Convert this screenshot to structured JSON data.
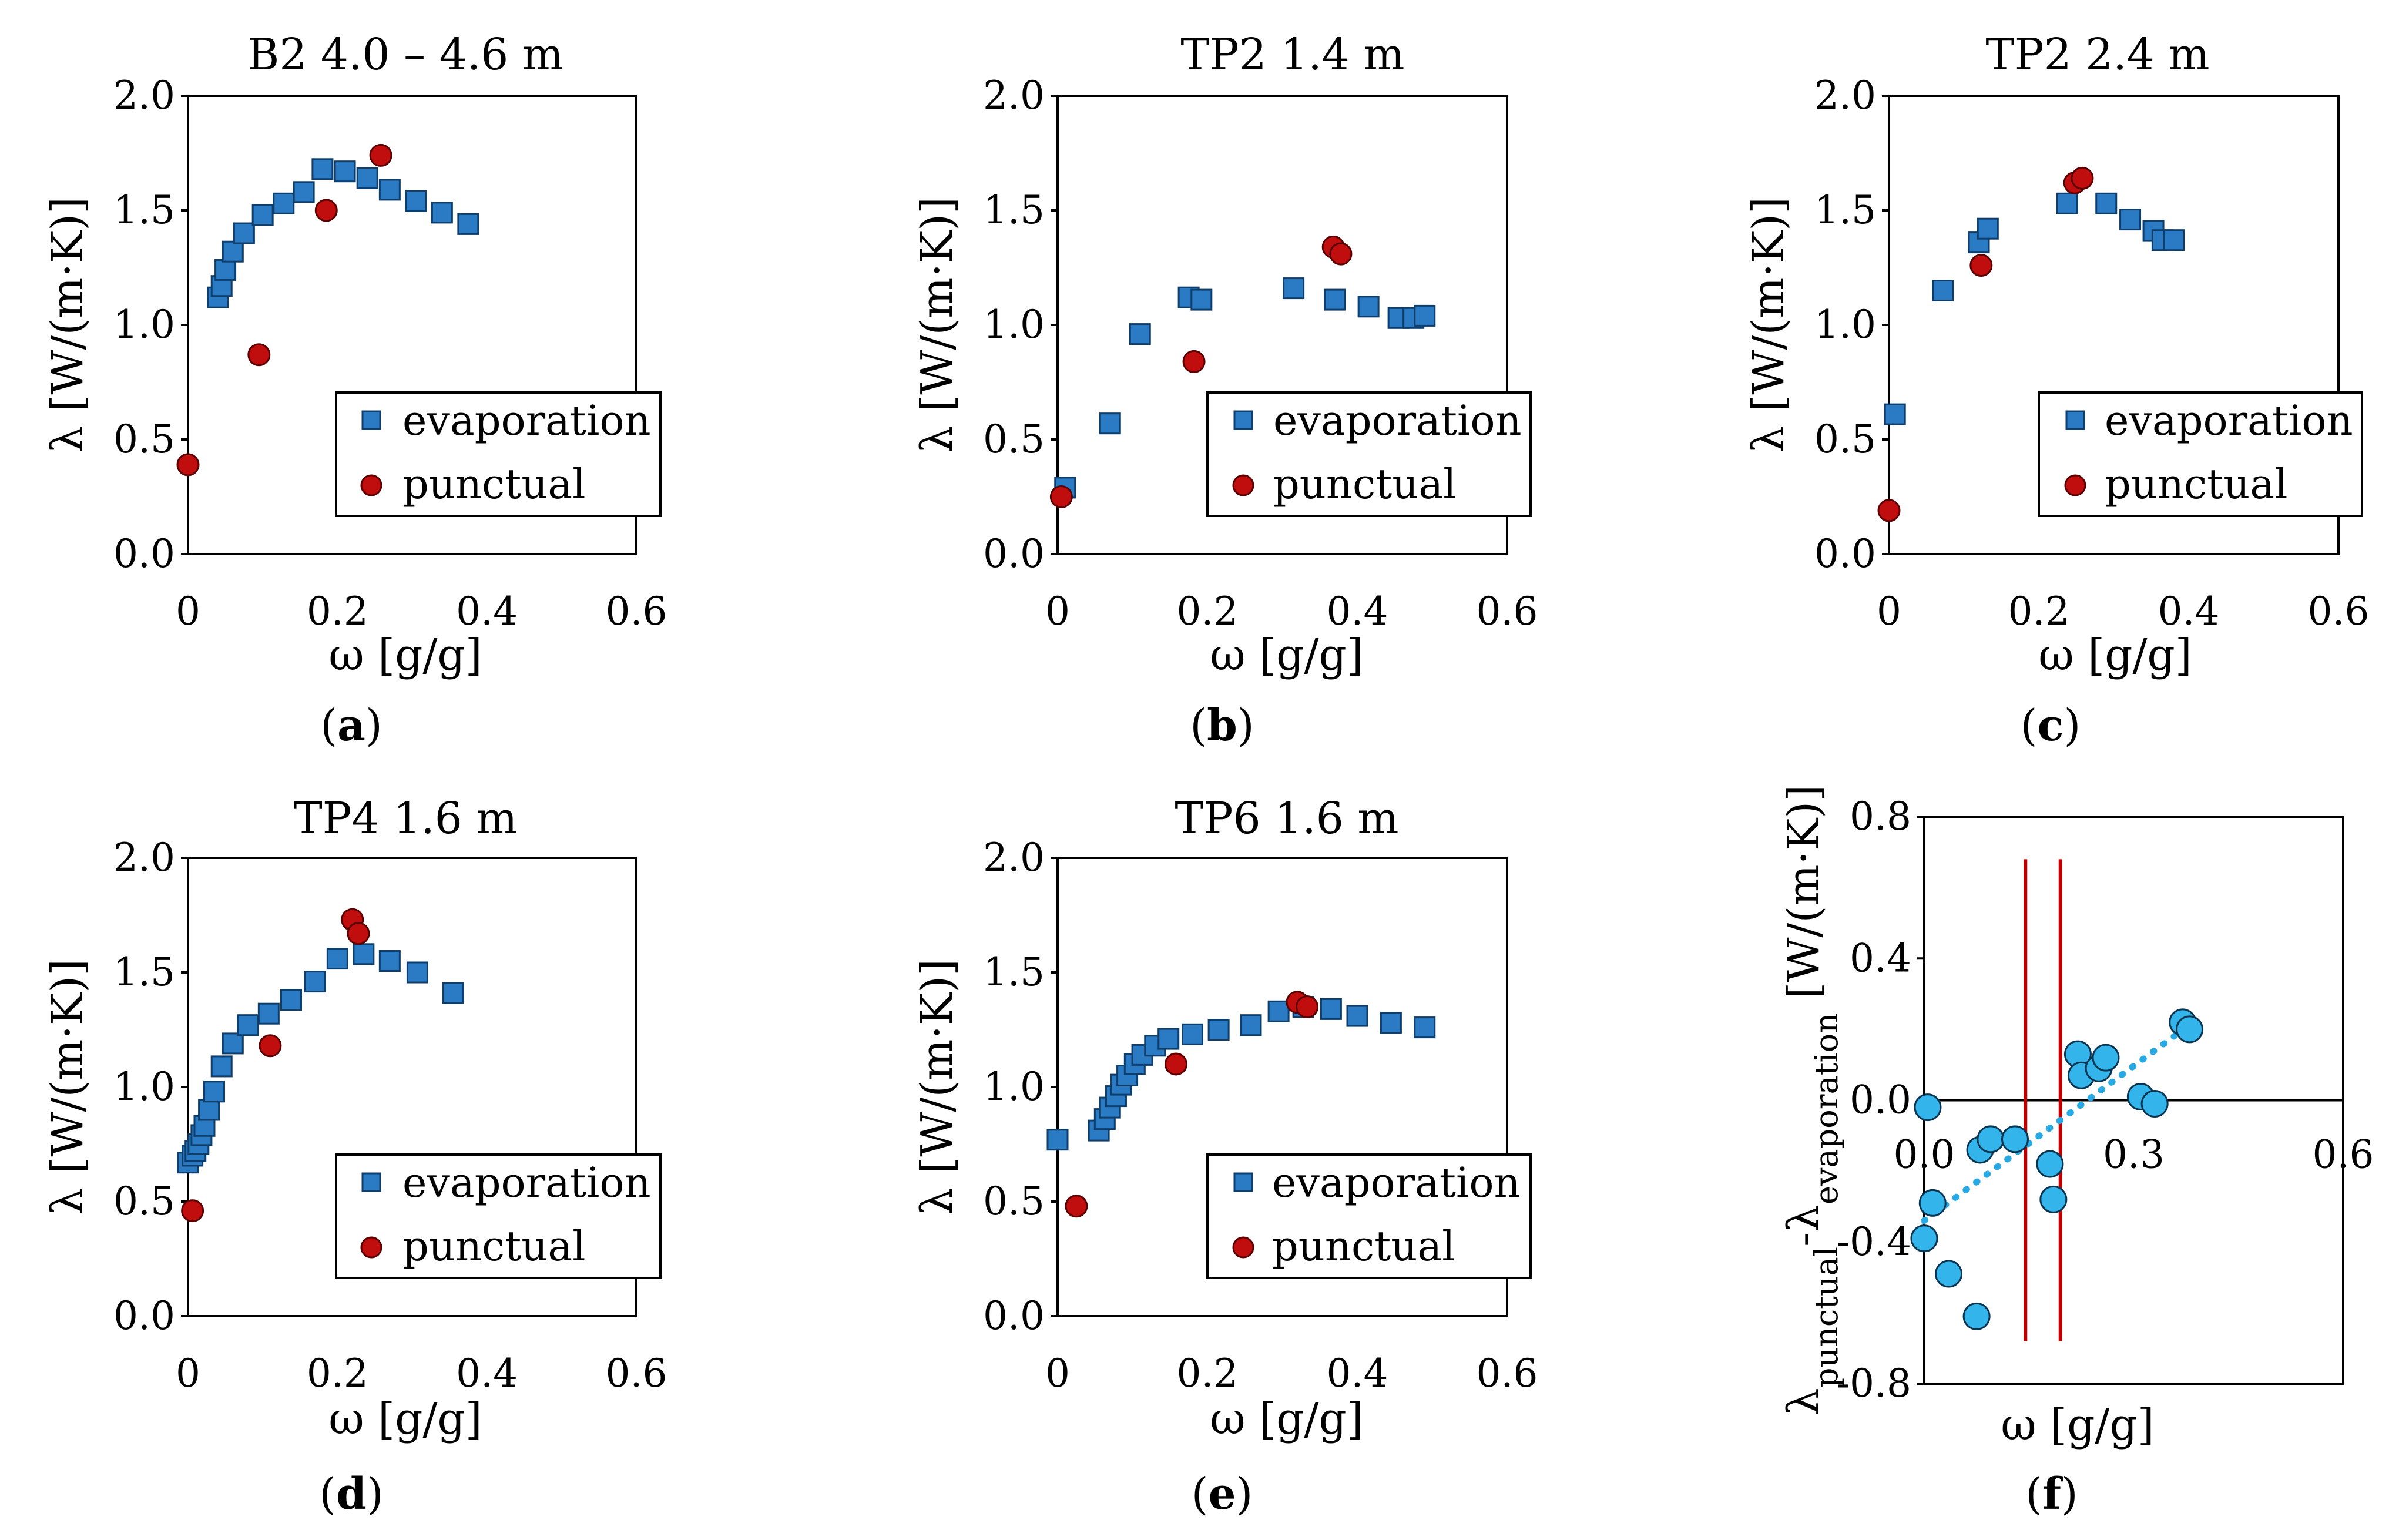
{
  "figure": {
    "legend_labels": {
      "evaporation": "evaporation",
      "punctual": "punctual"
    },
    "colors": {
      "evaporation": "#2a7ac4",
      "punctual": "#c00d0d",
      "diff_points": "#33b4ea",
      "trend": "#29a9e4",
      "vlines": "#c00000"
    }
  },
  "chart_data": [
    {
      "id": "a",
      "caption_letter": "a",
      "type": "scatter",
      "title": "B2 4.0 – 4.6 m",
      "ylabel": "λ [W/(m·K)]",
      "xlabel": "ω [g/g]",
      "xlim": [
        0,
        0.6
      ],
      "ylim": [
        0,
        2.0
      ],
      "xticks": [
        0,
        0.2,
        0.4,
        0.6
      ],
      "xtick_labels": [
        "0",
        "0.2",
        "0.4",
        "0.6"
      ],
      "yticks": [
        0,
        0.5,
        1.0,
        1.5,
        2.0
      ],
      "ytick_labels": [
        "0.0",
        "0.5",
        "1.0",
        "1.5",
        "2.0"
      ],
      "legend": "bottom-right",
      "series": [
        {
          "name": "evaporation",
          "marker": "square",
          "points": [
            [
              0.04,
              1.12
            ],
            [
              0.045,
              1.17
            ],
            [
              0.05,
              1.24
            ],
            [
              0.06,
              1.32
            ],
            [
              0.075,
              1.4
            ],
            [
              0.1,
              1.48
            ],
            [
              0.128,
              1.53
            ],
            [
              0.155,
              1.58
            ],
            [
              0.18,
              1.68
            ],
            [
              0.21,
              1.67
            ],
            [
              0.24,
              1.64
            ],
            [
              0.27,
              1.59
            ],
            [
              0.305,
              1.54
            ],
            [
              0.34,
              1.49
            ],
            [
              0.375,
              1.44
            ]
          ]
        },
        {
          "name": "punctual",
          "marker": "circle",
          "points": [
            [
              0.0,
              0.39
            ],
            [
              0.095,
              0.87
            ],
            [
              0.185,
              1.5
            ],
            [
              0.258,
              1.74
            ]
          ]
        }
      ]
    },
    {
      "id": "b",
      "caption_letter": "b",
      "type": "scatter",
      "title": "TP2 1.4 m",
      "ylabel": "λ [W/(m·K)]",
      "xlabel": "ω [g/g]",
      "xlim": [
        0,
        0.6
      ],
      "ylim": [
        0,
        2.0
      ],
      "xticks": [
        0,
        0.2,
        0.4,
        0.6
      ],
      "xtick_labels": [
        "0",
        "0.2",
        "0.4",
        "0.6"
      ],
      "yticks": [
        0,
        0.5,
        1.0,
        1.5,
        2.0
      ],
      "ytick_labels": [
        "0.0",
        "0.5",
        "1.0",
        "1.5",
        "2.0"
      ],
      "legend": "bottom-right",
      "series": [
        {
          "name": "evaporation",
          "marker": "square",
          "points": [
            [
              0.01,
              0.29
            ],
            [
              0.07,
              0.57
            ],
            [
              0.11,
              0.96
            ],
            [
              0.175,
              1.12
            ],
            [
              0.192,
              1.11
            ],
            [
              0.315,
              1.16
            ],
            [
              0.37,
              1.11
            ],
            [
              0.415,
              1.08
            ],
            [
              0.455,
              1.03
            ],
            [
              0.475,
              1.03
            ],
            [
              0.49,
              1.04
            ]
          ]
        },
        {
          "name": "punctual",
          "marker": "circle",
          "points": [
            [
              0.005,
              0.25
            ],
            [
              0.182,
              0.84
            ],
            [
              0.368,
              1.34
            ],
            [
              0.378,
              1.31
            ]
          ]
        }
      ]
    },
    {
      "id": "c",
      "caption_letter": "c",
      "type": "scatter",
      "title": "TP2 2.4 m",
      "ylabel": "λ [W/(m·K)]",
      "xlabel": "ω [g/g]",
      "xlim": [
        0,
        0.6
      ],
      "ylim": [
        0,
        2.0
      ],
      "xticks": [
        0,
        0.2,
        0.4,
        0.6
      ],
      "xtick_labels": [
        "0",
        "0.2",
        "0.4",
        "0.6"
      ],
      "yticks": [
        0,
        0.5,
        1.0,
        1.5,
        2.0
      ],
      "ytick_labels": [
        "0.0",
        "0.5",
        "1.0",
        "1.5",
        "2.0"
      ],
      "legend": "bottom-right",
      "series": [
        {
          "name": "evaporation",
          "marker": "square",
          "points": [
            [
              0.008,
              0.61
            ],
            [
              0.072,
              1.15
            ],
            [
              0.12,
              1.36
            ],
            [
              0.132,
              1.42
            ],
            [
              0.238,
              1.53
            ],
            [
              0.29,
              1.53
            ],
            [
              0.322,
              1.46
            ],
            [
              0.353,
              1.41
            ],
            [
              0.365,
              1.37
            ],
            [
              0.38,
              1.37
            ]
          ]
        },
        {
          "name": "punctual",
          "marker": "circle",
          "points": [
            [
              0.0,
              0.19
            ],
            [
              0.123,
              1.26
            ],
            [
              0.248,
              1.62
            ],
            [
              0.258,
              1.64
            ]
          ]
        }
      ]
    },
    {
      "id": "d",
      "caption_letter": "d",
      "type": "scatter",
      "title": "TP4 1.6 m",
      "ylabel": "λ [W/(m·K)]",
      "xlabel": "ω [g/g]",
      "xlim": [
        0,
        0.6
      ],
      "ylim": [
        0,
        2.0
      ],
      "xticks": [
        0,
        0.2,
        0.4,
        0.6
      ],
      "xtick_labels": [
        "0",
        "0.2",
        "0.4",
        "0.6"
      ],
      "yticks": [
        0,
        0.5,
        1.0,
        1.5,
        2.0
      ],
      "ytick_labels": [
        "0.0",
        "0.5",
        "1.0",
        "1.5",
        "2.0"
      ],
      "legend": "bottom-right",
      "series": [
        {
          "name": "evaporation",
          "marker": "square",
          "points": [
            [
              0.0,
              0.67
            ],
            [
              0.006,
              0.7
            ],
            [
              0.01,
              0.72
            ],
            [
              0.014,
              0.75
            ],
            [
              0.018,
              0.79
            ],
            [
              0.022,
              0.83
            ],
            [
              0.028,
              0.9
            ],
            [
              0.035,
              0.98
            ],
            [
              0.045,
              1.09
            ],
            [
              0.06,
              1.19
            ],
            [
              0.08,
              1.27
            ],
            [
              0.108,
              1.32
            ],
            [
              0.138,
              1.38
            ],
            [
              0.17,
              1.46
            ],
            [
              0.2,
              1.56
            ],
            [
              0.235,
              1.58
            ],
            [
              0.27,
              1.55
            ],
            [
              0.307,
              1.5
            ],
            [
              0.355,
              1.41
            ]
          ]
        },
        {
          "name": "punctual",
          "marker": "circle",
          "points": [
            [
              0.006,
              0.46
            ],
            [
              0.11,
              1.18
            ],
            [
              0.22,
              1.73
            ],
            [
              0.228,
              1.67
            ]
          ]
        }
      ]
    },
    {
      "id": "e",
      "caption_letter": "e",
      "type": "scatter",
      "title": "TP6 1.6 m",
      "ylabel": "λ [W/(m·K)]",
      "xlabel": "ω [g/g]",
      "xlim": [
        0,
        0.6
      ],
      "ylim": [
        0,
        2.0
      ],
      "xticks": [
        0,
        0.2,
        0.4,
        0.6
      ],
      "xtick_labels": [
        "0",
        "0.2",
        "0.4",
        "0.6"
      ],
      "yticks": [
        0,
        0.5,
        1.0,
        1.5,
        2.0
      ],
      "ytick_labels": [
        "0.0",
        "0.5",
        "1.0",
        "1.5",
        "2.0"
      ],
      "legend": "bottom-right",
      "series": [
        {
          "name": "evaporation",
          "marker": "square",
          "points": [
            [
              0.0,
              0.77
            ],
            [
              0.055,
              0.81
            ],
            [
              0.063,
              0.86
            ],
            [
              0.07,
              0.91
            ],
            [
              0.078,
              0.96
            ],
            [
              0.085,
              1.01
            ],
            [
              0.093,
              1.05
            ],
            [
              0.103,
              1.1
            ],
            [
              0.113,
              1.14
            ],
            [
              0.13,
              1.18
            ],
            [
              0.148,
              1.21
            ],
            [
              0.18,
              1.23
            ],
            [
              0.215,
              1.25
            ],
            [
              0.258,
              1.27
            ],
            [
              0.295,
              1.33
            ],
            [
              0.328,
              1.35
            ],
            [
              0.365,
              1.34
            ],
            [
              0.4,
              1.31
            ],
            [
              0.445,
              1.28
            ],
            [
              0.49,
              1.26
            ]
          ]
        },
        {
          "name": "punctual",
          "marker": "circle",
          "points": [
            [
              0.025,
              0.48
            ],
            [
              0.158,
              1.1
            ],
            [
              0.32,
              1.37
            ],
            [
              0.333,
              1.35
            ]
          ]
        }
      ]
    },
    {
      "id": "f",
      "caption_letter": "f",
      "type": "scatter",
      "title": "",
      "ylabel_main": "λ",
      "ylabel_sub1": "punctual",
      "ylabel_mid": "-λ",
      "ylabel_sub2": "evaporation",
      "ylabel_unit": " [W/(m·K)]",
      "xlabel": "ω [g/g]",
      "xlim": [
        0,
        0.6
      ],
      "ylim": [
        -0.8,
        0.8
      ],
      "xticks": [
        0,
        0.3,
        0.6
      ],
      "xtick_labels": [
        "0.0",
        "0.3",
        "0.6"
      ],
      "yticks": [
        -0.8,
        -0.4,
        0.0,
        0.4,
        0.8
      ],
      "ytick_labels": [
        "-0.8",
        "-0.4",
        "0.0",
        "0.4",
        "0.8"
      ],
      "series": [
        {
          "name": "difference",
          "marker": "circle",
          "points": [
            [
              0.0,
              -0.39
            ],
            [
              0.005,
              -0.02
            ],
            [
              0.012,
              -0.29
            ],
            [
              0.035,
              -0.49
            ],
            [
              0.08,
              -0.14
            ],
            [
              0.095,
              -0.11
            ],
            [
              0.13,
              -0.11
            ],
            [
              0.18,
              -0.18
            ],
            [
              0.185,
              -0.28
            ],
            [
              0.22,
              0.13
            ],
            [
              0.225,
              0.07
            ],
            [
              0.25,
              0.09
            ],
            [
              0.26,
              0.12
            ],
            [
              0.31,
              0.01
            ],
            [
              0.33,
              -0.01
            ],
            [
              0.37,
              0.22
            ],
            [
              0.38,
              0.2
            ],
            [
              0.075,
              -0.61
            ]
          ]
        }
      ],
      "trendline": {
        "style": "dotted",
        "x": [
          0.0,
          0.385
        ],
        "y": [
          -0.34,
          0.22
        ]
      },
      "vertical_lines": [
        {
          "x": 0.145
        },
        {
          "x": 0.195
        }
      ],
      "vline_yrange": [
        -0.68,
        0.68
      ]
    }
  ]
}
